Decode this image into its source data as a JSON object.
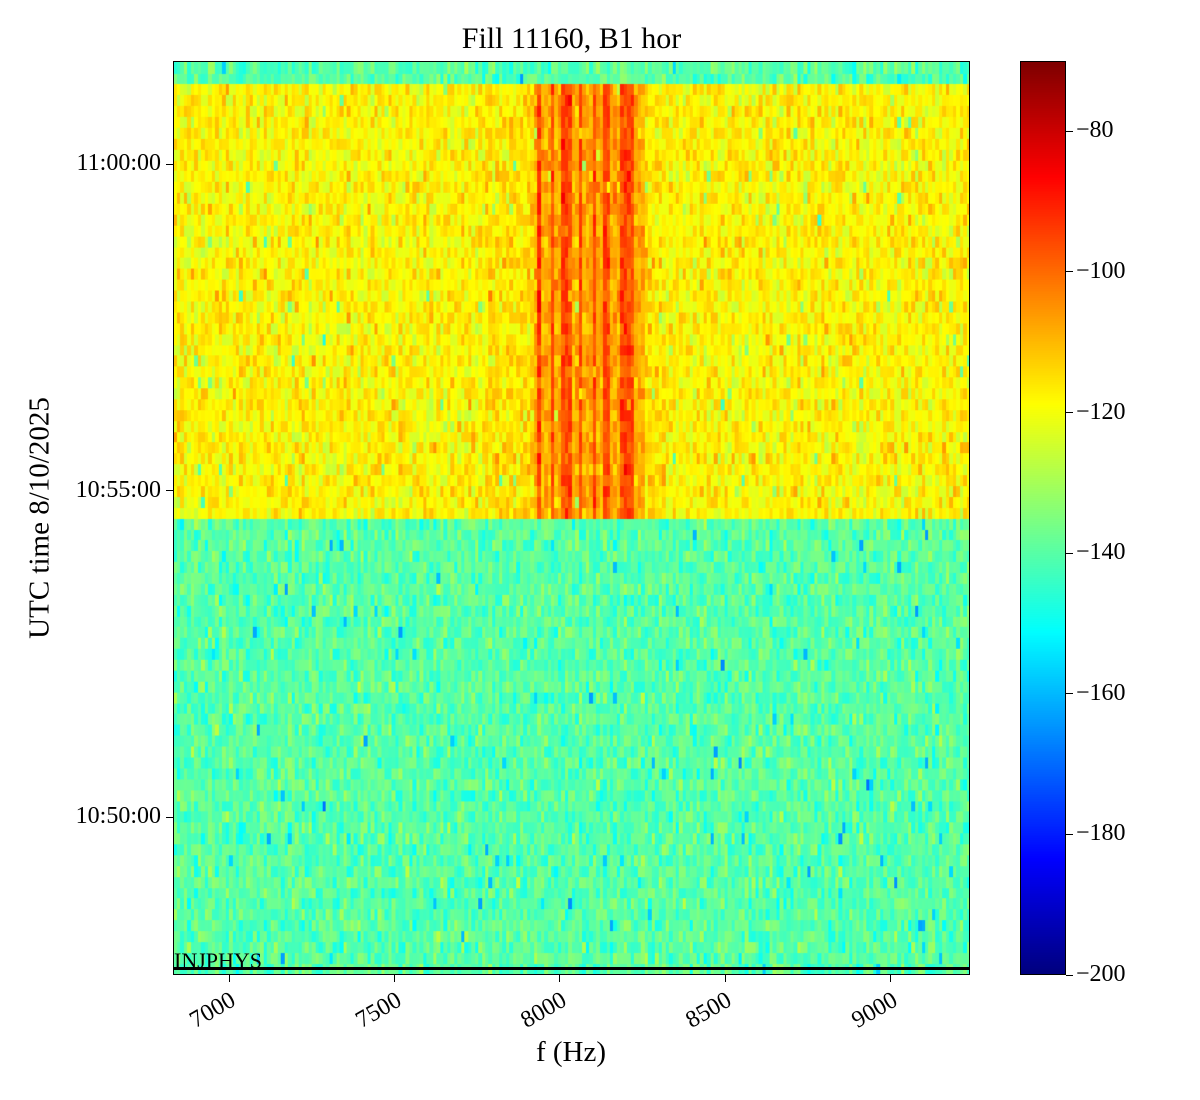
{
  "chart_data": {
    "type": "heatmap",
    "title": "Fill 11160, B1 hor",
    "xlabel": "f (Hz)",
    "ylabel": "UTC time 8/10/2025",
    "xlim": [
      6830,
      9240
    ],
    "ylim_seconds_of_day": [
      38855,
      39695
    ],
    "x_ticks": [
      7000,
      7500,
      8000,
      8500,
      9000
    ],
    "x_tick_labels": [
      "7000",
      "7500",
      "8000",
      "8500",
      "9000"
    ],
    "y_ticks_seconds_of_day": [
      39000,
      39300,
      39600
    ],
    "y_tick_labels": [
      "10:50:00",
      "10:55:00",
      "11:00:00"
    ],
    "colormap": "jet",
    "clim": [
      -200,
      -70
    ],
    "colorbar_ticks": [
      -80,
      -100,
      -120,
      -140,
      -160,
      -180,
      -200
    ],
    "colorbar_tick_labels": [
      "−80",
      "−100",
      "−120",
      "−140",
      "−160",
      "−180",
      "−200"
    ],
    "row_duration_s": 10,
    "regions": [
      {
        "from": "10:47:35",
        "to": "10:54:35",
        "mean_level": -140
      },
      {
        "from": "10:54:35",
        "to": "11:01:15",
        "mean_level": -118,
        "peak_band_hz": [
          7920,
          8250
        ],
        "peak_level": -95
      },
      {
        "from": "11:01:15",
        "to": "11:01:35",
        "mean_level": -140
      }
    ],
    "annotation": {
      "text": "INJPHYS",
      "time": "10:47:40"
    }
  }
}
